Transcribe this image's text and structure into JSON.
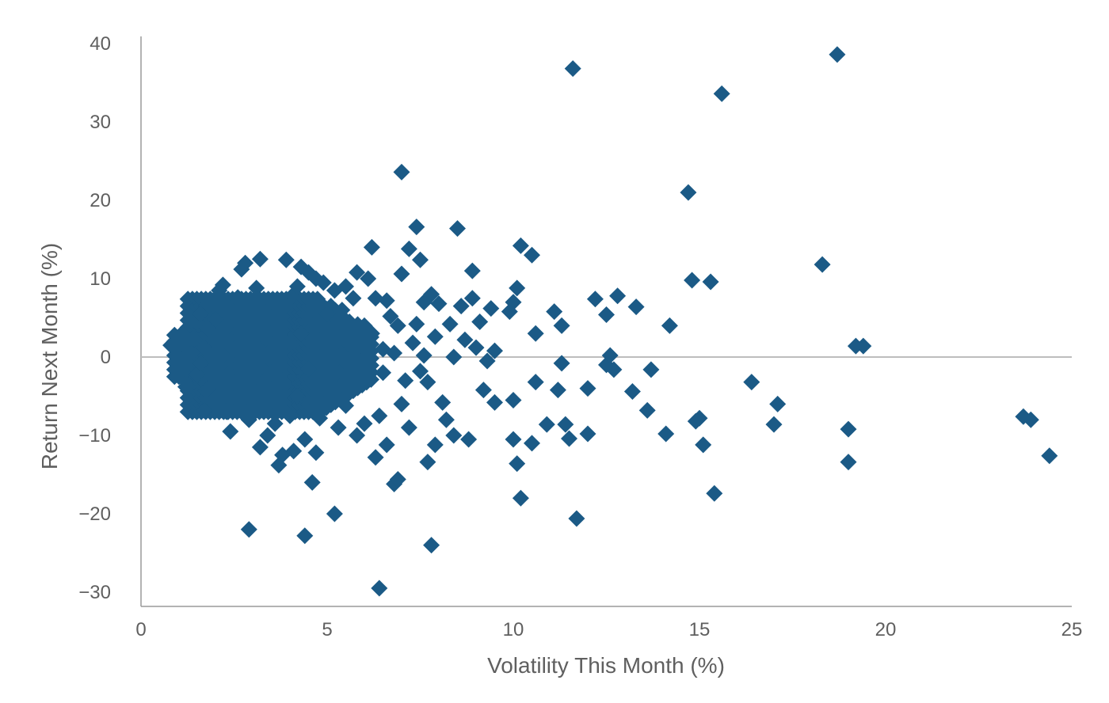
{
  "chart_data": {
    "type": "scatter",
    "title": "",
    "xlabel": "Volatility This Month (%)",
    "ylabel": "Return Next Month (%)",
    "xlim": [
      0,
      25
    ],
    "ylim": [
      -32,
      40
    ],
    "xticks": [
      0,
      5,
      10,
      15,
      20,
      25
    ],
    "yticks": [
      -30,
      -20,
      -10,
      0,
      10,
      20,
      30,
      40
    ],
    "xtick_labels": [
      "0",
      "5",
      "10",
      "15",
      "20",
      "25"
    ],
    "ytick_labels": [
      "−30",
      "−20",
      "−10",
      "0",
      "10",
      "20",
      "30",
      "40"
    ],
    "marker": "diamond",
    "grid": false,
    "zero_line": true,
    "legend": "none",
    "colors": {
      "points": "#1b5a86",
      "axis": "#9a9a9a",
      "zero_line": "#bdbdbd",
      "text": "#5f5f5f"
    },
    "series": [
      {
        "points": [
          [
            0.8,
            1.5
          ],
          [
            0.9,
            2.8
          ],
          [
            1.0,
            2.0
          ],
          [
            1.0,
            0.5
          ],
          [
            1.1,
            1.8
          ],
          [
            1.1,
            3.0
          ],
          [
            1.2,
            -3.8
          ],
          [
            1.2,
            -1.0
          ],
          [
            1.3,
            0.3
          ],
          [
            1.4,
            2.4
          ],
          [
            1.5,
            -2.2
          ],
          [
            1.5,
            4.5
          ],
          [
            1.6,
            -0.8
          ],
          [
            1.6,
            5.5
          ],
          [
            1.7,
            -6.8
          ],
          [
            1.7,
            1.2
          ],
          [
            1.8,
            3.6
          ],
          [
            1.8,
            -4.0
          ],
          [
            1.9,
            6.8
          ],
          [
            1.9,
            -1.8
          ],
          [
            2.0,
            0.2
          ],
          [
            2.0,
            4.8
          ],
          [
            2.1,
            -5.5
          ],
          [
            2.1,
            8.5
          ],
          [
            2.2,
            9.2
          ],
          [
            2.2,
            -2.5
          ],
          [
            2.3,
            2.2
          ],
          [
            2.3,
            -7.0
          ],
          [
            2.4,
            -9.5
          ],
          [
            2.4,
            5.8
          ],
          [
            2.5,
            -3.2
          ],
          [
            2.5,
            1.0
          ],
          [
            2.6,
            7.6
          ],
          [
            2.6,
            -5.0
          ],
          [
            2.7,
            3.8
          ],
          [
            2.7,
            11.2
          ],
          [
            2.8,
            -1.2
          ],
          [
            2.8,
            12.0
          ],
          [
            2.9,
            -22.0
          ],
          [
            2.9,
            -8.0
          ],
          [
            3.0,
            6.2
          ],
          [
            3.0,
            0.5
          ],
          [
            3.1,
            -4.5
          ],
          [
            3.1,
            8.8
          ],
          [
            3.2,
            12.5
          ],
          [
            3.2,
            -11.5
          ],
          [
            3.3,
            2.6
          ],
          [
            3.3,
            -6.5
          ],
          [
            3.4,
            5.0
          ],
          [
            3.4,
            -10.0
          ],
          [
            3.5,
            -2.0
          ],
          [
            3.5,
            7.2
          ],
          [
            3.6,
            0.8
          ],
          [
            3.6,
            -8.5
          ],
          [
            3.7,
            -13.8
          ],
          [
            3.7,
            4.0
          ],
          [
            3.8,
            -12.5
          ],
          [
            3.8,
            -3.0
          ],
          [
            3.9,
            12.4
          ],
          [
            3.9,
            6.5
          ],
          [
            4.0,
            -7.5
          ],
          [
            4.0,
            1.8
          ],
          [
            4.1,
            -12.0
          ],
          [
            4.1,
            8.0
          ],
          [
            4.2,
            9.0
          ],
          [
            4.2,
            -5.0
          ],
          [
            4.3,
            11.5
          ],
          [
            4.3,
            3.0
          ],
          [
            4.4,
            -22.8
          ],
          [
            4.4,
            -10.5
          ],
          [
            4.5,
            10.8
          ],
          [
            4.5,
            -1.5
          ],
          [
            4.6,
            -16.0
          ],
          [
            4.6,
            6.0
          ],
          [
            4.7,
            -12.2
          ],
          [
            4.7,
            10.0
          ],
          [
            4.8,
            2.0
          ],
          [
            4.8,
            -7.8
          ],
          [
            4.9,
            9.5
          ],
          [
            4.9,
            -4.0
          ],
          [
            5.0,
            5.5
          ],
          [
            5.0,
            -6.0
          ],
          [
            5.1,
            3.5
          ],
          [
            5.1,
            -2.5
          ],
          [
            5.2,
            -20.0
          ],
          [
            5.2,
            8.5
          ],
          [
            5.3,
            0.0
          ],
          [
            5.3,
            -9.0
          ],
          [
            5.4,
            6.0
          ],
          [
            5.4,
            -3.5
          ],
          [
            5.5,
            9.0
          ],
          [
            5.5,
            -6.2
          ],
          [
            5.6,
            2.5
          ],
          [
            5.6,
            4.5
          ],
          [
            5.7,
            -2.0
          ],
          [
            5.7,
            7.5
          ],
          [
            5.8,
            10.8
          ],
          [
            5.8,
            -10.0
          ],
          [
            5.9,
            1.5
          ],
          [
            6.0,
            -8.5
          ],
          [
            6.0,
            4.0
          ],
          [
            6.1,
            10.0
          ],
          [
            6.2,
            14.0
          ],
          [
            6.2,
            3.0
          ],
          [
            6.3,
            -12.8
          ],
          [
            6.3,
            7.5
          ],
          [
            6.4,
            -29.5
          ],
          [
            6.4,
            -7.5
          ],
          [
            6.5,
            -2.0
          ],
          [
            6.5,
            1.0
          ],
          [
            6.6,
            7.2
          ],
          [
            6.6,
            -11.2
          ],
          [
            6.7,
            5.2
          ],
          [
            6.8,
            -16.2
          ],
          [
            6.8,
            0.5
          ],
          [
            6.9,
            4.0
          ],
          [
            6.9,
            -15.6
          ],
          [
            7.0,
            23.6
          ],
          [
            7.0,
            10.6
          ],
          [
            7.0,
            -6.0
          ],
          [
            7.1,
            -3.0
          ],
          [
            7.2,
            13.8
          ],
          [
            7.2,
            -9.0
          ],
          [
            7.3,
            1.8
          ],
          [
            7.4,
            16.6
          ],
          [
            7.4,
            4.2
          ],
          [
            7.5,
            -1.8
          ],
          [
            7.5,
            12.4
          ],
          [
            7.6,
            7.0
          ],
          [
            7.6,
            0.2
          ],
          [
            7.7,
            -13.4
          ],
          [
            7.7,
            -3.2
          ],
          [
            7.8,
            -24.0
          ],
          [
            7.8,
            8.0
          ],
          [
            7.9,
            -11.2
          ],
          [
            7.9,
            2.6
          ],
          [
            8.0,
            6.8
          ],
          [
            8.1,
            -5.8
          ],
          [
            8.2,
            -8.0
          ],
          [
            8.3,
            4.2
          ],
          [
            8.4,
            -10.0
          ],
          [
            8.4,
            0.0
          ],
          [
            8.5,
            16.4
          ],
          [
            8.6,
            6.5
          ],
          [
            8.7,
            2.2
          ],
          [
            8.8,
            -10.5
          ],
          [
            8.9,
            11.0
          ],
          [
            8.9,
            7.5
          ],
          [
            9.0,
            1.2
          ],
          [
            9.1,
            4.5
          ],
          [
            9.2,
            -4.2
          ],
          [
            9.3,
            -0.5
          ],
          [
            9.4,
            6.2
          ],
          [
            9.5,
            -5.8
          ],
          [
            9.5,
            0.8
          ],
          [
            9.9,
            5.8
          ],
          [
            10.0,
            7.0
          ],
          [
            10.0,
            -5.5
          ],
          [
            10.0,
            -10.5
          ],
          [
            10.1,
            8.8
          ],
          [
            10.1,
            -13.6
          ],
          [
            10.2,
            14.2
          ],
          [
            10.2,
            -18.0
          ],
          [
            10.5,
            13.0
          ],
          [
            10.5,
            -11.0
          ],
          [
            10.6,
            3.0
          ],
          [
            10.6,
            -3.2
          ],
          [
            10.9,
            -8.6
          ],
          [
            11.1,
            5.8
          ],
          [
            11.2,
            -4.2
          ],
          [
            11.3,
            4.0
          ],
          [
            11.3,
            -0.8
          ],
          [
            11.4,
            -8.6
          ],
          [
            11.5,
            -10.4
          ],
          [
            11.6,
            36.8
          ],
          [
            11.7,
            -20.6
          ],
          [
            12.0,
            -4.0
          ],
          [
            12.0,
            -9.8
          ],
          [
            12.2,
            7.4
          ],
          [
            12.5,
            -1.0
          ],
          [
            12.5,
            5.4
          ],
          [
            12.6,
            0.2
          ],
          [
            12.7,
            -1.6
          ],
          [
            12.8,
            7.8
          ],
          [
            13.2,
            -4.4
          ],
          [
            13.3,
            6.4
          ],
          [
            13.6,
            -6.8
          ],
          [
            13.7,
            -1.6
          ],
          [
            14.1,
            -9.8
          ],
          [
            14.2,
            4.0
          ],
          [
            14.7,
            21.0
          ],
          [
            14.8,
            9.8
          ],
          [
            14.9,
            -8.2
          ],
          [
            15.0,
            -7.8
          ],
          [
            15.1,
            -11.2
          ],
          [
            15.3,
            9.6
          ],
          [
            15.4,
            -17.4
          ],
          [
            15.6,
            33.6
          ],
          [
            16.4,
            -3.2
          ],
          [
            17.0,
            -8.6
          ],
          [
            17.1,
            -6.0
          ],
          [
            18.3,
            11.8
          ],
          [
            18.7,
            38.6
          ],
          [
            19.0,
            -9.2
          ],
          [
            19.0,
            -13.4
          ],
          [
            19.2,
            1.4
          ],
          [
            19.4,
            1.4
          ],
          [
            23.7,
            -7.6
          ],
          [
            23.9,
            -8.0
          ],
          [
            24.4,
            -12.6
          ]
        ]
      }
    ]
  }
}
